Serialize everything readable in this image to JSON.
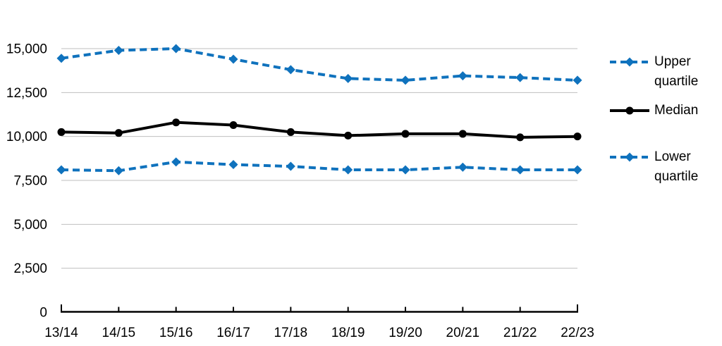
{
  "chart_data": {
    "type": "line",
    "title": "",
    "xlabel": "",
    "ylabel": "",
    "categories": [
      "13/14",
      "14/15",
      "15/16",
      "16/17",
      "17/18",
      "18/19",
      "19/20",
      "20/21",
      "21/22",
      "22/23"
    ],
    "series": [
      {
        "name": "Upper quartile",
        "color": "#0F72BD",
        "line_style": "dashed",
        "marker": "diamond",
        "values": [
          14450,
          14900,
          15000,
          14400,
          13800,
          13300,
          13200,
          13450,
          13350,
          13200
        ]
      },
      {
        "name": "Median",
        "color": "#000000",
        "line_style": "solid",
        "marker": "circle",
        "values": [
          10250,
          10200,
          10800,
          10650,
          10250,
          10050,
          10150,
          10150,
          9950,
          10000
        ]
      },
      {
        "name": "Lower quartile",
        "color": "#0F72BD",
        "line_style": "dashed",
        "marker": "diamond",
        "values": [
          8100,
          8050,
          8550,
          8400,
          8300,
          8100,
          8100,
          8250,
          8100,
          8100
        ]
      }
    ],
    "ylim": [
      0,
      15000
    ],
    "ytick_step": 2500,
    "ytick_labels": [
      "0",
      "2,500",
      "5,000",
      "7,500",
      "10,000",
      "12,500",
      "15,000"
    ],
    "grid": true,
    "legend_position": "right",
    "colors": {
      "gridline": "#BFBFBF",
      "axis": "#000000",
      "text": "#000000",
      "background": "#FFFFFF"
    }
  }
}
